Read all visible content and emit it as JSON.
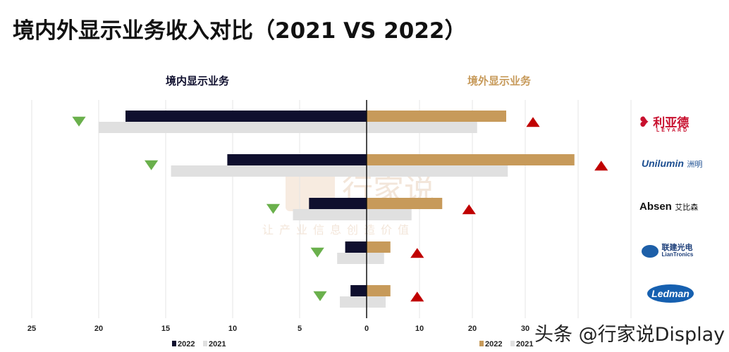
{
  "title": "境内外显示业务收入对比（2021 VS 2022）",
  "watermark": "头条 @行家说Display",
  "bg_watermark": {
    "name": "行家说",
    "slogan": "让产业信息创造价值"
  },
  "chart_data": [
    {
      "type": "bar",
      "orientation": "horizontal",
      "title": "境内显示业务",
      "categories": [
        "利亚德 LEYARD",
        "Unilumin 洲明",
        "Absen 艾比森",
        "联建光电 LianTronics",
        "Ledman"
      ],
      "series": [
        {
          "name": "2022",
          "color": "#0f0f2e",
          "values": [
            18.0,
            10.4,
            4.3,
            1.6,
            1.2
          ]
        },
        {
          "name": "2021",
          "color": "#e0e0e0",
          "values": [
            20.0,
            14.6,
            5.5,
            2.2,
            2.0
          ]
        }
      ],
      "xlim": [
        25,
        0
      ],
      "xticks": [
        25,
        20,
        15,
        10,
        5,
        0
      ],
      "trend_markers": [
        "down",
        "down",
        "down",
        "down",
        "down"
      ],
      "trend_color": "#6ab04c",
      "legend": "bottom",
      "grid": true
    },
    {
      "type": "bar",
      "orientation": "horizontal",
      "title": "境外显示业务",
      "categories": [
        "利亚德 LEYARD",
        "Unilumin 洲明",
        "Absen 艾比森",
        "联建光电 LianTronics",
        "Ledman"
      ],
      "series": [
        {
          "name": "2022",
          "color": "#c79a5a",
          "values": [
            26.4,
            39.3,
            14.3,
            4.5,
            4.5
          ]
        },
        {
          "name": "2021",
          "color": "#e0e0e0",
          "values": [
            20.9,
            26.7,
            8.5,
            3.3,
            3.6
          ]
        }
      ],
      "xlim": [
        0,
        50
      ],
      "xticks": [
        0,
        10,
        20,
        30
      ],
      "trend_markers": [
        "up",
        "up",
        "up",
        "up",
        "up"
      ],
      "trend_color": "#c00000",
      "legend": "bottom",
      "grid": true
    }
  ],
  "logos": [
    "利亚德",
    "LEYARD",
    "Unilumin",
    "洲明",
    "Absen",
    "艾比森",
    "联建光电",
    "LianTronics",
    "Ledman"
  ]
}
